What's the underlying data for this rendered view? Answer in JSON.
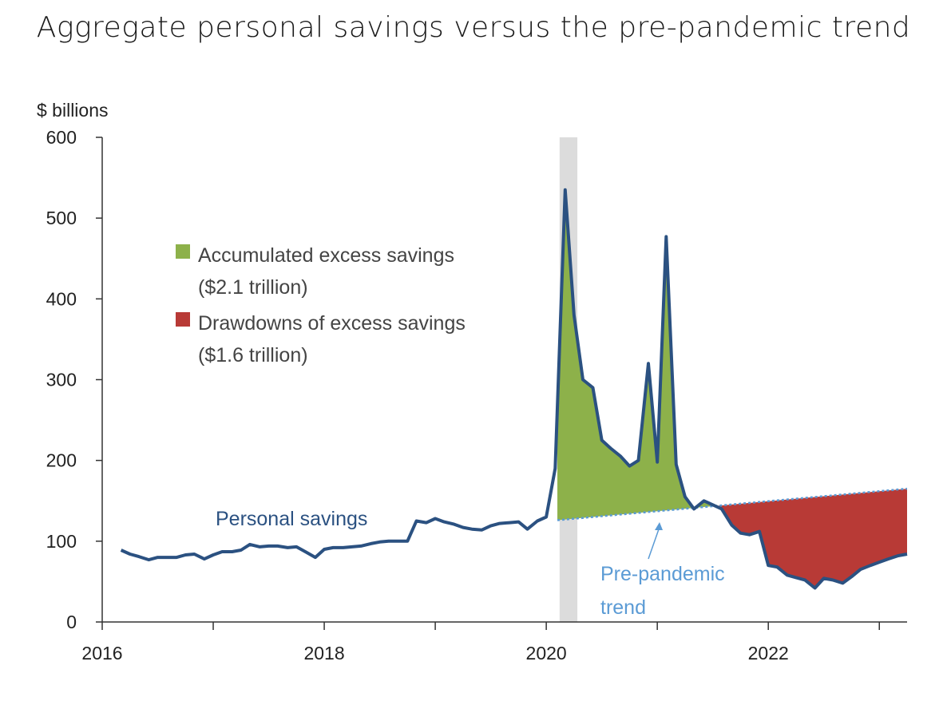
{
  "chart_data": {
    "type": "line",
    "title": "Aggregate personal savings versus the pre-pandemic trend",
    "ylabel": "$ billions",
    "xlabel": "",
    "ylim": [
      0,
      600
    ],
    "xlim": [
      2016.0,
      2023.25
    ],
    "yticks": [
      0,
      100,
      200,
      300,
      400,
      500,
      600
    ],
    "xtick_labels": [
      {
        "x": 2016,
        "label": "2016"
      },
      {
        "x": 2018,
        "label": "2018"
      },
      {
        "x": 2020,
        "label": "2020"
      },
      {
        "x": 2022,
        "label": "2022"
      }
    ],
    "recession_band": [
      2020.12,
      2020.28
    ],
    "colors": {
      "savings_line": "#2b5181",
      "trend_line": "#5b9bd5",
      "excess_fill": "#8db14a",
      "drawdown_fill": "#b83a36",
      "recession": "#dcdcdc",
      "axis": "#333333"
    },
    "legend": [
      {
        "swatch": "excess_fill",
        "lines": [
          "Accumulated excess savings",
          "($2.1 trillion)"
        ]
      },
      {
        "swatch": "drawdown_fill",
        "lines": [
          "Drawdowns of excess savings",
          "($1.6 trillion)"
        ]
      }
    ],
    "annotations": {
      "savings_label": "Personal savings",
      "trend_label": [
        "Pre-pandemic",
        "trend"
      ]
    },
    "series": [
      {
        "name": "Personal savings",
        "x": [
          2016.17,
          2016.25,
          2016.33,
          2016.42,
          2016.5,
          2016.58,
          2016.67,
          2016.75,
          2016.83,
          2016.92,
          2017.0,
          2017.08,
          2017.17,
          2017.25,
          2017.33,
          2017.42,
          2017.5,
          2017.58,
          2017.67,
          2017.75,
          2017.83,
          2017.92,
          2018.0,
          2018.08,
          2018.17,
          2018.25,
          2018.33,
          2018.42,
          2018.5,
          2018.58,
          2018.67,
          2018.75,
          2018.83,
          2018.92,
          2019.0,
          2019.08,
          2019.17,
          2019.25,
          2019.33,
          2019.42,
          2019.5,
          2019.58,
          2019.67,
          2019.75,
          2019.83,
          2019.92,
          2020.0,
          2020.08,
          2020.17,
          2020.25,
          2020.33,
          2020.42,
          2020.5,
          2020.58,
          2020.67,
          2020.75,
          2020.83,
          2020.92,
          2021.0,
          2021.08,
          2021.17,
          2021.25,
          2021.33,
          2021.42,
          2021.5,
          2021.58,
          2021.67,
          2021.75,
          2021.83,
          2021.92,
          2022.0,
          2022.08,
          2022.17,
          2022.25,
          2022.33,
          2022.42,
          2022.5,
          2022.58,
          2022.67,
          2022.75,
          2022.83,
          2022.92,
          2023.0,
          2023.08,
          2023.17,
          2023.25
        ],
        "values": [
          89,
          84,
          81,
          77,
          80,
          80,
          80,
          83,
          84,
          78,
          83,
          87,
          87,
          89,
          96,
          93,
          94,
          94,
          92,
          93,
          87,
          80,
          90,
          92,
          92,
          93,
          94,
          97,
          99,
          100,
          100,
          100,
          125,
          123,
          128,
          124,
          121,
          117,
          115,
          114,
          119,
          122,
          123,
          124,
          115,
          125,
          130,
          190,
          535,
          380,
          300,
          290,
          225,
          215,
          205,
          193,
          200,
          320,
          198,
          477,
          195,
          155,
          140,
          150,
          145,
          140,
          120,
          110,
          108,
          112,
          70,
          68,
          58,
          55,
          52,
          42,
          54,
          52,
          48,
          56,
          65,
          70,
          74,
          78,
          82,
          84
        ]
      },
      {
        "name": "Pre-pandemic trend",
        "x": [
          2020.1,
          2023.25
        ],
        "values": [
          126,
          165
        ]
      }
    ]
  }
}
